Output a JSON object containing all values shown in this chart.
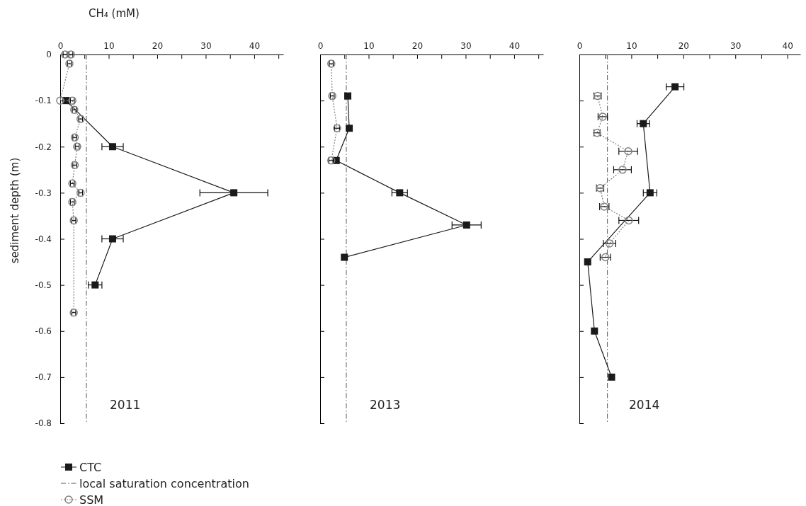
{
  "chart_data": [
    {
      "type": "line",
      "xlabel": "CH₄ (mM)",
      "ylabel": "sediment depth (m)",
      "annotations": [
        "2011"
      ],
      "xlim": [
        0,
        46
      ],
      "ylim": [
        -0.8,
        0
      ],
      "xticks": [
        0,
        {
          "value": 5,
          "label": null
        },
        10,
        {
          "value": 15,
          "label": null
        },
        20,
        {
          "value": 25,
          "label": null
        },
        30,
        {
          "value": 35,
          "label": null
        },
        40,
        {
          "value": 45,
          "label": null
        }
      ],
      "yticks": [
        0,
        -0.1,
        -0.2,
        -0.3,
        -0.4,
        -0.5,
        -0.6,
        -0.7,
        -0.8
      ],
      "legend": "bottom left",
      "grid": false,
      "ref_lines": [
        {
          "axis": "x",
          "value": 5.4,
          "label": "local saturation concentration",
          "color": "#555555",
          "line_style": "dashed"
        }
      ],
      "series": [
        {
          "name": "CTC",
          "color": "#1a1a1a",
          "marker": "square",
          "line_style": "solid",
          "x": [
            1.2,
            10.8,
            35.8,
            10.8,
            7.2
          ],
          "values": [
            -0.1,
            -0.2,
            -0.3,
            -0.4,
            -0.5
          ],
          "xerrors": [
            0.4,
            2.2,
            7,
            2.2,
            1.4
          ]
        },
        {
          "name": "SSM",
          "color": "#808080",
          "marker": "circle",
          "line_style": "dotted",
          "x": [
            1.0,
            2.2,
            1.9,
            0,
            2.5,
            2.9,
            4.2,
            3.0,
            3.5,
            3.0,
            2.5,
            4.2,
            2.5,
            2.8,
            2.8
          ],
          "values": [
            0,
            0,
            -0.02,
            -0.1,
            -0.1,
            -0.12,
            -0.14,
            -0.18,
            -0.2,
            -0.24,
            -0.28,
            -0.3,
            -0.32,
            -0.36,
            -0.56
          ],
          "xerrors": [
            0.4,
            0.4,
            0.4,
            null,
            0.4,
            0.4,
            0.4,
            0.4,
            0.4,
            0.4,
            0.4,
            0.4,
            0.4,
            0.4,
            0.4
          ]
        }
      ]
    },
    {
      "type": "line",
      "annotations": [
        "2013"
      ],
      "xlim": [
        0,
        46
      ],
      "ylim": [
        -0.8,
        0
      ],
      "tick_labels": "x",
      "xticks": [
        0,
        {
          "value": 5,
          "label": null
        },
        10,
        {
          "value": 15,
          "label": null
        },
        20,
        {
          "value": 25,
          "label": null
        },
        30,
        {
          "value": 35,
          "label": null
        },
        40,
        {
          "value": 45,
          "label": null
        }
      ],
      "yticks": [
        {
          "value": 0,
          "label": null
        },
        {
          "value": -0.1,
          "label": null
        },
        {
          "value": -0.2,
          "label": null
        },
        {
          "value": -0.3,
          "label": null
        },
        {
          "value": -0.4,
          "label": null
        },
        {
          "value": -0.5,
          "label": null
        },
        {
          "value": -0.6,
          "label": null
        },
        {
          "value": -0.7,
          "label": null
        },
        {
          "value": -0.8,
          "label": null
        }
      ],
      "grid": false,
      "ref_lines": [
        {
          "axis": "x",
          "value": 5.4,
          "color": "#555555",
          "line_style": "dashed"
        }
      ],
      "series": [
        {
          "color": "#1a1a1a",
          "marker": "square",
          "line_style": "solid",
          "x": [
            5.7,
            6.0,
            3.3,
            16.4,
            30.2,
            5.0
          ],
          "values": [
            -0.09,
            -0.16,
            -0.23,
            -0.3,
            -0.37,
            -0.44
          ],
          "xerrors": [
            0.6,
            null,
            0.6,
            1.6,
            3,
            null
          ]
        },
        {
          "color": "#808080",
          "marker": "circle",
          "line_style": "dotted",
          "x": [
            2.3,
            2.5,
            3.5,
            2.3
          ],
          "values": [
            -0.02,
            -0.09,
            -0.16,
            -0.23
          ],
          "xerrors": [
            0.4,
            0.4,
            0.5,
            0.5
          ]
        }
      ]
    },
    {
      "type": "line",
      "annotations": [
        "2014"
      ],
      "xlim": [
        0,
        42.5
      ],
      "ylim": [
        -0.8,
        0
      ],
      "tick_labels": "x",
      "xticks": [
        0,
        {
          "value": 5,
          "label": null
        },
        10,
        {
          "value": 15,
          "label": null
        },
        20,
        {
          "value": 25,
          "label": null
        },
        30,
        {
          "value": 35,
          "label": null
        },
        40
      ],
      "yticks": [
        {
          "value": 0,
          "label": null
        },
        {
          "value": -0.1,
          "label": null
        },
        {
          "value": -0.2,
          "label": null
        },
        {
          "value": -0.3,
          "label": null
        },
        {
          "value": -0.4,
          "label": null
        },
        {
          "value": -0.5,
          "label": null
        },
        {
          "value": -0.6,
          "label": null
        },
        {
          "value": -0.7,
          "label": null
        },
        {
          "value": -0.8,
          "label": null
        }
      ],
      "grid": false,
      "ref_lines": [
        {
          "axis": "x",
          "value": 5.4,
          "color": "#555555",
          "line_style": "dashed"
        }
      ],
      "series": [
        {
          "color": "#1a1a1a",
          "marker": "square",
          "line_style": "solid",
          "x": [
            18.4,
            12.3,
            13.6,
            1.6,
            2.9,
            6.2
          ],
          "values": [
            -0.07,
            -0.15,
            -0.3,
            -0.45,
            -0.6,
            -0.7
          ],
          "xerrors": [
            1.7,
            1.2,
            1.3,
            null,
            null,
            null
          ]
        },
        {
          "color": "#808080",
          "marker": "circle",
          "line_style": "dotted",
          "x": [
            3.5,
            4.5,
            3.4,
            9.4,
            8.3,
            4.0,
            4.8,
            9.5,
            5.8,
            5.0
          ],
          "values": [
            -0.09,
            -0.135,
            -0.17,
            -0.21,
            -0.25,
            -0.29,
            -0.33,
            -0.36,
            -0.41,
            -0.44
          ],
          "xerrors": [
            0.7,
            0.9,
            0.6,
            1.8,
            1.7,
            0.7,
            0.9,
            1.9,
            1.2,
            1.0
          ]
        }
      ]
    }
  ]
}
